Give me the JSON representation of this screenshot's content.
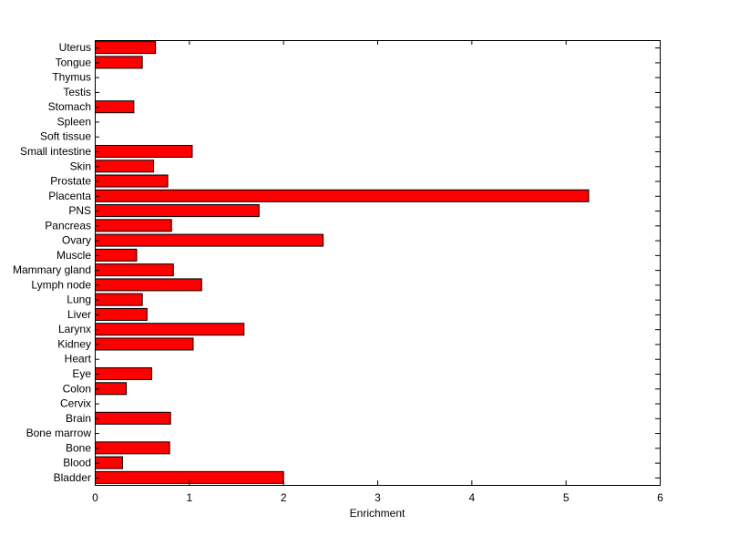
{
  "chart_data": {
    "type": "bar",
    "orientation": "horizontal",
    "xlabel": "Enrichment",
    "ylabel": "",
    "title": "",
    "xlim": [
      0,
      6
    ],
    "xticks": [
      0,
      1,
      2,
      3,
      4,
      5,
      6
    ],
    "bar_color": "#ff0000",
    "bar_edge_color": "#000000",
    "grid": false,
    "categories": [
      "Bladder",
      "Blood",
      "Bone",
      "Bone marrow",
      "Brain",
      "Cervix",
      "Colon",
      "Eye",
      "Heart",
      "Kidney",
      "Larynx",
      "Liver",
      "Lung",
      "Lymph node",
      "Mammary gland",
      "Muscle",
      "Ovary",
      "Pancreas",
      "PNS",
      "Placenta",
      "Prostate",
      "Skin",
      "Small intestine",
      "Soft tissue",
      "Spleen",
      "Stomach",
      "Testis",
      "Thymus",
      "Tongue",
      "Uterus"
    ],
    "values": [
      2.0,
      0.29,
      0.79,
      0,
      0.8,
      0,
      0.33,
      0.6,
      0,
      1.04,
      1.58,
      0.55,
      0.5,
      1.13,
      0.83,
      0.44,
      2.42,
      0.81,
      1.74,
      5.24,
      0.77,
      0.62,
      1.03,
      0,
      0,
      0.41,
      0,
      0,
      0.5,
      0.64
    ]
  }
}
